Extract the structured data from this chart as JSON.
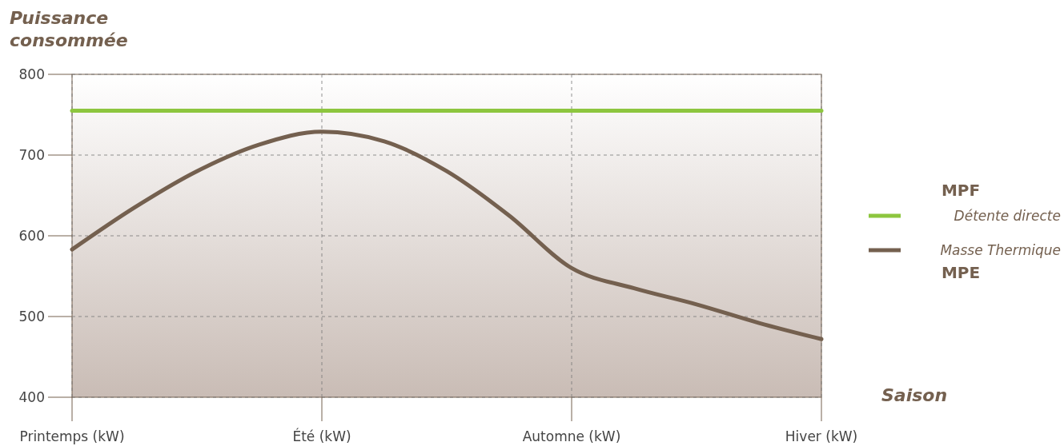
{
  "chart_data": {
    "type": "line",
    "xlabel": "Saison",
    "ylabel": "Puissance consommée",
    "categories": [
      "Printemps (kW)",
      null,
      null,
      null,
      "Été (kW)",
      null,
      null,
      null,
      "Automne (kW)",
      null,
      null,
      null,
      "Hiver (kW)"
    ],
    "ylim": [
      400,
      800
    ],
    "yticks": [
      400,
      500,
      600,
      700,
      800
    ],
    "grid": true,
    "legend": "right",
    "marker": "none",
    "line_style": "solid",
    "annotations": [
      "MPF",
      "MPE"
    ],
    "series": [
      {
        "name": "Détente directe",
        "color": "#8dc63f",
        "values": [
          755,
          755,
          755,
          755,
          755,
          755,
          755,
          755,
          755,
          755,
          755,
          755,
          755
        ]
      },
      {
        "name": "Masse Thermique",
        "color": "#74604f",
        "values": [
          583,
          635,
          680,
          713,
          729,
          717,
          680,
          625,
          560,
          535,
          515,
          492,
          472
        ]
      }
    ]
  }
}
